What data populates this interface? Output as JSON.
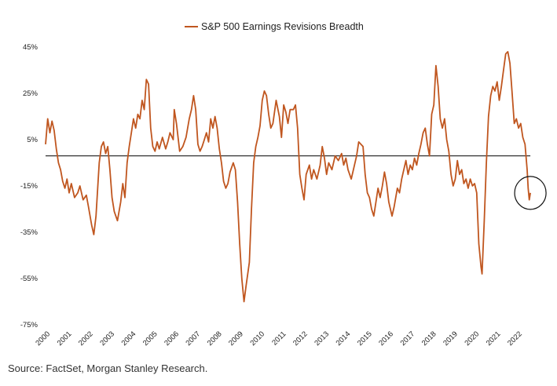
{
  "chart_data": {
    "type": "line",
    "title": "",
    "xlabel": "",
    "ylabel": "",
    "legend": {
      "placement": "top-center"
    },
    "series": [
      {
        "name": "S&P 500 Earnings Revisions Breadth",
        "color": "#c0561f",
        "points": [
          [
            2000.0,
            3
          ],
          [
            2000.1,
            14
          ],
          [
            2000.2,
            8
          ],
          [
            2000.3,
            13
          ],
          [
            2000.4,
            9
          ],
          [
            2000.5,
            1
          ],
          [
            2000.6,
            -5
          ],
          [
            2000.7,
            -8
          ],
          [
            2000.8,
            -13
          ],
          [
            2000.9,
            -16
          ],
          [
            2001.0,
            -12
          ],
          [
            2001.1,
            -18
          ],
          [
            2001.2,
            -14
          ],
          [
            2001.35,
            -20
          ],
          [
            2001.5,
            -18
          ],
          [
            2001.6,
            -15
          ],
          [
            2001.75,
            -21
          ],
          [
            2001.9,
            -19
          ],
          [
            2002.0,
            -24
          ],
          [
            2002.15,
            -32
          ],
          [
            2002.25,
            -36
          ],
          [
            2002.35,
            -28
          ],
          [
            2002.5,
            -5
          ],
          [
            2002.6,
            2
          ],
          [
            2002.7,
            4
          ],
          [
            2002.8,
            -1
          ],
          [
            2002.9,
            2
          ],
          [
            2003.0,
            -8
          ],
          [
            2003.1,
            -20
          ],
          [
            2003.2,
            -26
          ],
          [
            2003.35,
            -30
          ],
          [
            2003.5,
            -22
          ],
          [
            2003.6,
            -14
          ],
          [
            2003.7,
            -20
          ],
          [
            2003.8,
            -5
          ],
          [
            2003.9,
            2
          ],
          [
            2004.0,
            8
          ],
          [
            2004.1,
            14
          ],
          [
            2004.2,
            10
          ],
          [
            2004.3,
            16
          ],
          [
            2004.4,
            14
          ],
          [
            2004.5,
            22
          ],
          [
            2004.6,
            18
          ],
          [
            2004.7,
            31
          ],
          [
            2004.8,
            29
          ],
          [
            2004.9,
            10
          ],
          [
            2005.0,
            2
          ],
          [
            2005.1,
            0
          ],
          [
            2005.2,
            4
          ],
          [
            2005.3,
            1
          ],
          [
            2005.45,
            6
          ],
          [
            2005.6,
            1
          ],
          [
            2005.7,
            4
          ],
          [
            2005.8,
            8
          ],
          [
            2005.95,
            5
          ],
          [
            2006.0,
            18
          ],
          [
            2006.1,
            12
          ],
          [
            2006.25,
            0
          ],
          [
            2006.4,
            2
          ],
          [
            2006.55,
            6
          ],
          [
            2006.7,
            14
          ],
          [
            2006.8,
            18
          ],
          [
            2006.9,
            24
          ],
          [
            2007.0,
            18
          ],
          [
            2007.1,
            3
          ],
          [
            2007.2,
            0
          ],
          [
            2007.3,
            2
          ],
          [
            2007.4,
            5
          ],
          [
            2007.5,
            8
          ],
          [
            2007.6,
            4
          ],
          [
            2007.7,
            14
          ],
          [
            2007.8,
            10
          ],
          [
            2007.9,
            15
          ],
          [
            2008.0,
            10
          ],
          [
            2008.1,
            1
          ],
          [
            2008.2,
            -5
          ],
          [
            2008.3,
            -13
          ],
          [
            2008.4,
            -16
          ],
          [
            2008.5,
            -14
          ],
          [
            2008.6,
            -9
          ],
          [
            2008.75,
            -5
          ],
          [
            2008.85,
            -8
          ],
          [
            2008.95,
            -22
          ],
          [
            2009.05,
            -40
          ],
          [
            2009.15,
            -55
          ],
          [
            2009.25,
            -65
          ],
          [
            2009.35,
            -58
          ],
          [
            2009.5,
            -48
          ],
          [
            2009.6,
            -25
          ],
          [
            2009.7,
            -5
          ],
          [
            2009.8,
            2
          ],
          [
            2009.9,
            6
          ],
          [
            2010.0,
            11
          ],
          [
            2010.1,
            22
          ],
          [
            2010.2,
            26
          ],
          [
            2010.3,
            24
          ],
          [
            2010.4,
            16
          ],
          [
            2010.5,
            10
          ],
          [
            2010.6,
            12
          ],
          [
            2010.75,
            22
          ],
          [
            2010.9,
            15
          ],
          [
            2011.0,
            6
          ],
          [
            2011.1,
            20
          ],
          [
            2011.2,
            17
          ],
          [
            2011.3,
            12
          ],
          [
            2011.4,
            18
          ],
          [
            2011.55,
            18
          ],
          [
            2011.65,
            20
          ],
          [
            2011.75,
            10
          ],
          [
            2011.85,
            -10
          ],
          [
            2011.95,
            -16
          ],
          [
            2012.05,
            -21
          ],
          [
            2012.15,
            -10
          ],
          [
            2012.3,
            -6
          ],
          [
            2012.4,
            -12
          ],
          [
            2012.5,
            -8
          ],
          [
            2012.65,
            -12
          ],
          [
            2012.8,
            -6
          ],
          [
            2012.9,
            2
          ],
          [
            2013.0,
            -3
          ],
          [
            2013.1,
            -10
          ],
          [
            2013.2,
            -5
          ],
          [
            2013.35,
            -8
          ],
          [
            2013.5,
            -2
          ],
          [
            2013.65,
            -4
          ],
          [
            2013.8,
            -1
          ],
          [
            2013.9,
            -6
          ],
          [
            2014.0,
            -3
          ],
          [
            2014.1,
            -8
          ],
          [
            2014.25,
            -12
          ],
          [
            2014.4,
            -6
          ],
          [
            2014.5,
            -2
          ],
          [
            2014.6,
            4
          ],
          [
            2014.7,
            3
          ],
          [
            2014.8,
            2
          ],
          [
            2014.9,
            -10
          ],
          [
            2015.0,
            -18
          ],
          [
            2015.1,
            -20
          ],
          [
            2015.2,
            -25
          ],
          [
            2015.3,
            -28
          ],
          [
            2015.4,
            -22
          ],
          [
            2015.5,
            -16
          ],
          [
            2015.6,
            -20
          ],
          [
            2015.7,
            -15
          ],
          [
            2015.8,
            -9
          ],
          [
            2015.9,
            -14
          ],
          [
            2016.0,
            -22
          ],
          [
            2016.15,
            -28
          ],
          [
            2016.25,
            -24
          ],
          [
            2016.4,
            -16
          ],
          [
            2016.5,
            -18
          ],
          [
            2016.6,
            -12
          ],
          [
            2016.7,
            -8
          ],
          [
            2016.8,
            -4
          ],
          [
            2016.9,
            -10
          ],
          [
            2017.0,
            -6
          ],
          [
            2017.1,
            -8
          ],
          [
            2017.2,
            -3
          ],
          [
            2017.3,
            -6
          ],
          [
            2017.4,
            -1
          ],
          [
            2017.5,
            3
          ],
          [
            2017.6,
            8
          ],
          [
            2017.7,
            10
          ],
          [
            2017.8,
            3
          ],
          [
            2017.9,
            -2
          ],
          [
            2018.0,
            16
          ],
          [
            2018.1,
            20
          ],
          [
            2018.2,
            37
          ],
          [
            2018.3,
            28
          ],
          [
            2018.4,
            14
          ],
          [
            2018.5,
            10
          ],
          [
            2018.6,
            14
          ],
          [
            2018.7,
            5
          ],
          [
            2018.8,
            0
          ],
          [
            2018.9,
            -10
          ],
          [
            2019.0,
            -15
          ],
          [
            2019.1,
            -12
          ],
          [
            2019.2,
            -4
          ],
          [
            2019.3,
            -10
          ],
          [
            2019.4,
            -8
          ],
          [
            2019.5,
            -14
          ],
          [
            2019.6,
            -12
          ],
          [
            2019.7,
            -16
          ],
          [
            2019.8,
            -12
          ],
          [
            2019.9,
            -15
          ],
          [
            2020.0,
            -14
          ],
          [
            2020.1,
            -18
          ],
          [
            2020.2,
            -40
          ],
          [
            2020.3,
            -50
          ],
          [
            2020.35,
            -53
          ],
          [
            2020.45,
            -30
          ],
          [
            2020.55,
            -5
          ],
          [
            2020.65,
            15
          ],
          [
            2020.75,
            24
          ],
          [
            2020.85,
            28
          ],
          [
            2020.95,
            26
          ],
          [
            2021.05,
            30
          ],
          [
            2021.15,
            22
          ],
          [
            2021.25,
            28
          ],
          [
            2021.35,
            35
          ],
          [
            2021.45,
            42
          ],
          [
            2021.55,
            43
          ],
          [
            2021.65,
            38
          ],
          [
            2021.75,
            25
          ],
          [
            2021.85,
            12
          ],
          [
            2021.95,
            14
          ],
          [
            2022.05,
            10
          ],
          [
            2022.15,
            12
          ],
          [
            2022.25,
            6
          ],
          [
            2022.35,
            3
          ],
          [
            2022.45,
            -8
          ],
          [
            2022.5,
            -16
          ],
          [
            2022.55,
            -21
          ],
          [
            2022.6,
            -18
          ]
        ]
      }
    ],
    "reference_line": {
      "y": -2,
      "color": "#333333"
    },
    "x_ticks": [
      "2000",
      "2001",
      "2002",
      "2003",
      "2004",
      "2005",
      "2006",
      "2007",
      "2008",
      "2009",
      "2010",
      "2011",
      "2012",
      "2013",
      "2014",
      "2015",
      "2016",
      "2017",
      "2018",
      "2019",
      "2020",
      "2021",
      "2022"
    ],
    "y_ticks": [
      "45%",
      "25%",
      "5%",
      "-15%",
      "-35%",
      "-55%",
      "-75%"
    ],
    "xlim": [
      2000,
      2023
    ],
    "ylim": [
      -75,
      45
    ],
    "grid": false,
    "annotation": {
      "shape": "circle",
      "x": 2022.6,
      "y": -18,
      "color": "#111111"
    },
    "source": "Source: FactSet, Morgan Stanley Research."
  }
}
